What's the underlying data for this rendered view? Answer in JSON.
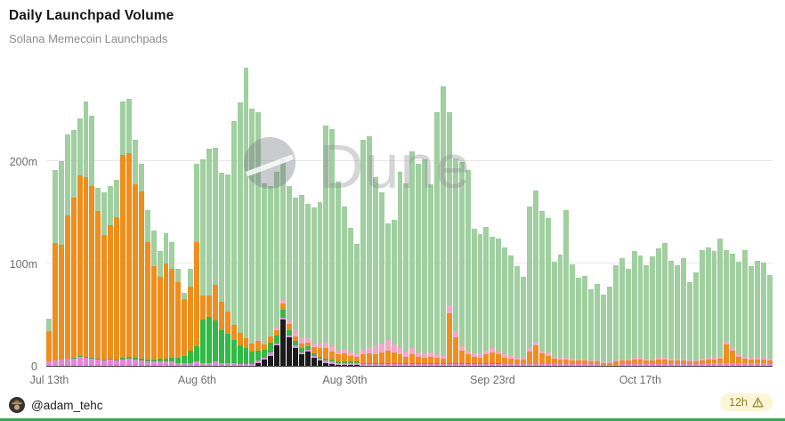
{
  "header": {
    "title": "Daily Launchpad Volume",
    "subtitle": "Solana Memecoin Launchpads"
  },
  "watermark": {
    "text": "Dune"
  },
  "footer": {
    "author": "@adam_tehc",
    "badge": {
      "label": "12h",
      "icon": "warning-triangle"
    }
  },
  "colors": {
    "background": "#ffffff",
    "gridline": "#e8e8e8",
    "axis_line": "#3c3c3c",
    "axis_text": "#6e6e6e",
    "bottom_accent_line": "#3aa655",
    "badge_background": "#fcf5d6",
    "badge_text": "#8e862a"
  },
  "chart_data": {
    "type": "bar",
    "stacked": true,
    "title": "Daily Launchpad Volume",
    "subtitle": "Solana Memecoin Launchpads",
    "unit": "volume in millions (m)",
    "granularity": "daily",
    "x_start_date": "Jul 13",
    "legend": false,
    "grid": "horizontal",
    "y_axis": {
      "tick_labels": [
        "0",
        "100m",
        "200m"
      ],
      "tick_values": [
        0,
        100,
        200
      ],
      "plot_max": 293
    },
    "x_axis": {
      "tick_labels": [
        "Jul 13th",
        "Aug 6th",
        "Aug 30th",
        "Sep 23rd",
        "Oct 17th"
      ],
      "tick_day_indices": [
        0,
        24,
        48,
        72,
        96
      ]
    },
    "series": [
      {
        "name": "black",
        "color": "#1b1b1b",
        "values": [
          0,
          0,
          0,
          0,
          0,
          0,
          0,
          0,
          0,
          0,
          0,
          0,
          0,
          0,
          0,
          0,
          0,
          0,
          0,
          0,
          0,
          0,
          0,
          0,
          0,
          0,
          0,
          0,
          0,
          0,
          0,
          0,
          0,
          0,
          3,
          6,
          10,
          20,
          45,
          28,
          17,
          11,
          14,
          8,
          5,
          3,
          2,
          1,
          1,
          1,
          1,
          0,
          0,
          0,
          0,
          0,
          0,
          0,
          0,
          0,
          0,
          0,
          0,
          0,
          0,
          0,
          0,
          0,
          0,
          0,
          0,
          0,
          0,
          0,
          0,
          0,
          0,
          0,
          0,
          0,
          0,
          0,
          0,
          0,
          0,
          0,
          0,
          0,
          0,
          0,
          0,
          0,
          0,
          0,
          0,
          0,
          0,
          0,
          0,
          0,
          0,
          0,
          0,
          0,
          0,
          0,
          0,
          0,
          0,
          0,
          0,
          0,
          0,
          0,
          0,
          0,
          0,
          0
        ]
      },
      {
        "name": "violet",
        "color": "#ec82e0",
        "values": [
          4,
          5,
          6,
          7,
          7,
          9,
          8,
          7,
          6,
          5,
          6,
          5,
          6,
          7,
          6,
          5,
          4,
          4,
          4,
          4,
          4,
          3,
          3,
          3,
          4,
          3,
          3,
          4,
          3,
          3,
          3,
          2,
          2,
          2,
          2,
          2,
          3,
          2,
          2,
          2,
          3,
          2,
          2,
          2,
          2,
          2,
          2,
          2,
          2,
          2,
          2,
          2,
          2,
          2,
          2,
          2,
          2,
          2,
          2,
          2,
          2,
          2,
          2,
          2,
          2,
          2,
          2,
          2,
          2,
          2,
          2,
          2,
          2,
          2,
          2,
          2,
          2,
          2,
          2,
          2,
          2,
          2,
          2,
          2,
          2,
          2,
          2,
          2,
          2,
          2,
          1,
          1,
          1,
          2,
          2,
          2,
          2,
          2,
          2,
          2,
          2,
          2,
          2,
          2,
          2,
          2,
          2,
          3,
          3,
          3,
          3,
          3,
          3,
          3,
          3,
          3,
          3,
          2
        ]
      },
      {
        "name": "green",
        "color": "#2fbb44",
        "values": [
          0,
          0,
          0,
          0,
          1,
          1,
          1,
          1,
          1,
          1,
          1,
          1,
          2,
          2,
          2,
          2,
          2,
          2,
          3,
          3,
          4,
          5,
          7,
          12,
          15,
          42,
          45,
          40,
          32,
          28,
          22,
          18,
          15,
          12,
          10,
          8,
          10,
          8,
          8,
          5,
          4,
          4,
          3,
          2,
          2,
          2,
          2,
          1,
          1,
          1,
          1,
          1,
          1,
          1,
          1,
          1,
          1,
          1,
          1,
          1,
          1,
          1,
          1,
          1,
          1,
          1,
          1,
          1,
          1,
          1,
          1,
          1,
          1,
          1,
          0,
          0,
          0,
          0,
          0,
          0,
          0,
          0,
          0,
          0,
          0,
          0,
          0,
          0,
          0,
          0,
          0,
          0,
          0,
          0,
          0,
          0,
          0,
          0,
          0,
          0,
          0,
          0,
          0,
          0,
          0,
          0,
          0,
          0,
          0,
          0,
          0,
          0,
          0,
          0,
          0,
          0,
          0,
          0
        ]
      },
      {
        "name": "orange",
        "color": "#ef8e1d",
        "values": [
          30,
          115,
          112,
          140,
          156,
          176,
          175,
          168,
          144,
          122,
          130,
          139,
          198,
          199,
          169,
          163,
          115,
          91,
          80,
          93,
          87,
          74,
          55,
          62,
          102,
          24,
          21,
          35,
          28,
          22,
          15,
          12,
          10,
          8,
          9,
          5,
          6,
          5,
          6,
          6,
          5,
          5,
          4,
          6,
          8,
          10,
          8,
          7,
          8,
          6,
          5,
          8,
          9,
          8,
          10,
          12,
          10,
          8,
          6,
          8,
          6,
          5,
          6,
          5,
          4,
          48,
          25,
          12,
          8,
          6,
          5,
          8,
          10,
          8,
          6,
          5,
          4,
          4,
          12,
          18,
          10,
          8,
          5,
          4,
          4,
          3,
          3,
          3,
          2,
          2,
          2,
          2,
          3,
          3,
          3,
          4,
          4,
          3,
          3,
          4,
          4,
          3,
          3,
          3,
          2,
          2,
          3,
          3,
          3,
          4,
          18,
          12,
          6,
          4,
          3,
          3,
          3,
          3
        ]
      },
      {
        "name": "pink",
        "color": "#f5a6c9",
        "values": [
          0,
          0,
          0,
          0,
          0,
          0,
          0,
          0,
          0,
          0,
          0,
          0,
          0,
          0,
          0,
          0,
          0,
          0,
          0,
          0,
          0,
          0,
          0,
          0,
          0,
          0,
          0,
          0,
          0,
          0,
          0,
          0,
          0,
          0,
          1,
          1,
          1,
          2,
          3,
          3,
          6,
          6,
          4,
          4,
          5,
          6,
          5,
          4,
          4,
          3,
          3,
          5,
          6,
          8,
          9,
          10,
          8,
          6,
          5,
          6,
          4,
          4,
          4,
          3,
          3,
          8,
          6,
          4,
          3,
          3,
          3,
          4,
          4,
          3,
          3,
          3,
          2,
          2,
          3,
          3,
          3,
          3,
          2,
          2,
          2,
          2,
          1,
          1,
          1,
          1,
          1,
          1,
          1,
          1,
          1,
          2,
          2,
          1,
          1,
          2,
          2,
          2,
          1,
          1,
          1,
          1,
          2,
          2,
          2,
          2,
          3,
          3,
          2,
          2,
          2,
          2,
          2,
          2
        ]
      },
      {
        "name": "sage",
        "color": "#a0cfa0",
        "values": [
          12,
          71,
          82,
          79,
          66,
          56,
          74,
          68,
          23,
          42,
          39,
          37,
          52,
          53,
          44,
          27,
          31,
          35,
          25,
          30,
          26,
          13,
          6,
          18,
          76,
          133,
          143,
          134,
          126,
          134,
          199,
          225,
          264,
          229,
          223,
          156,
          146,
          153,
          138,
          132,
          129,
          139,
          131,
          133,
          138,
          212,
          212,
          165,
          140,
          122,
          107,
          205,
          206,
          165,
          148,
          114,
          122,
          173,
          164,
          193,
          184,
          190,
          164,
          237,
          263,
          189,
          169,
          180,
          177,
          122,
          118,
          121,
          109,
          110,
          105,
          98,
          89,
          79,
          139,
          148,
          136,
          131,
          93,
          101,
          144,
          92,
          80,
          82,
          70,
          75,
          66,
          73,
          93,
          99,
          89,
          104,
          100,
          92,
          101,
          107,
          112,
          96,
          92,
          99,
          77,
          86,
          106,
          108,
          104,
          115,
          89,
          92,
          91,
          104,
          89,
          95,
          93,
          82
        ]
      }
    ]
  }
}
